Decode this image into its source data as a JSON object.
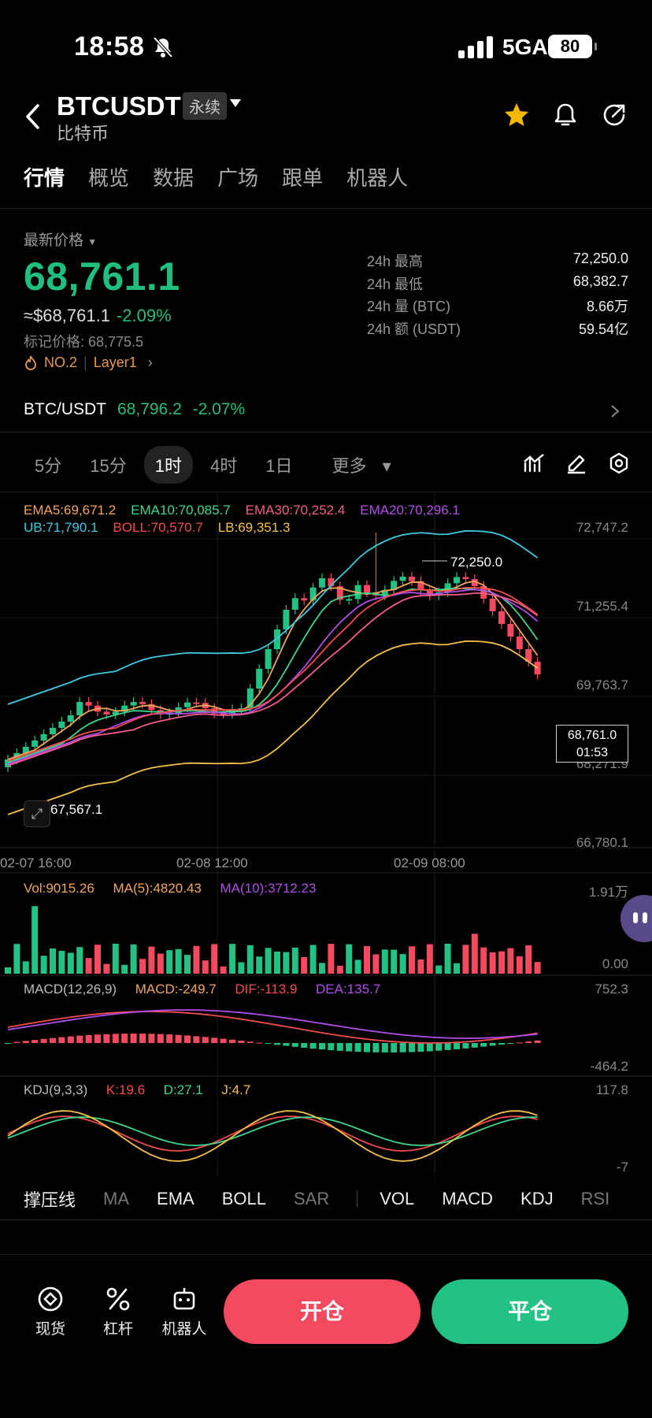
{
  "status_bar": {
    "time": "18:58",
    "network": "5GA",
    "battery": "80"
  },
  "header": {
    "symbol": "BTCUSDT",
    "contract_type": "永续",
    "name": "比特币"
  },
  "tabs": [
    "行情",
    "概览",
    "数据",
    "广场",
    "跟单",
    "机器人"
  ],
  "price": {
    "latest_label": "最新价格",
    "last": "68,761.1",
    "usd": "≈$68,761.1",
    "change": "-2.09%",
    "mark": "标记价格: 68,775.5",
    "rank": "NO.2",
    "category": "Layer1"
  },
  "stats": [
    {
      "label": "24h  最高",
      "value": "72,250.0"
    },
    {
      "label": "24h  最低",
      "value": "68,382.7"
    },
    {
      "label": "24h  量 (BTC)",
      "value": "8.66万"
    },
    {
      "label": "24h  额 (USDT)",
      "value": "59.54亿"
    }
  ],
  "spot_pair": {
    "label": "BTC/USDT",
    "price": "68,796.2",
    "change": "-2.07%"
  },
  "timeframes": [
    "5分",
    "15分",
    "1时",
    "4时",
    "1日",
    "更多"
  ],
  "active_timeframe": "1时",
  "legend": {
    "ema5": "EMA5:69,671.2",
    "ema10": "EMA10:70,085.7",
    "ema30": "EMA30:70,252.4",
    "ema20": "EMA20:70,296.1",
    "ub": "UB:71,790.1",
    "boll": "BOLL:70,570.7",
    "lb": "LB:69,351.3"
  },
  "price_axis": [
    "72,747.2",
    "71,255.4",
    "69,763.7",
    "68,271.9",
    "66,780.1"
  ],
  "time_axis": [
    "02-07 16:00",
    "02-08 12:00",
    "02-09 08:00"
  ],
  "annotations": {
    "high": "72,250.0",
    "low": "67,567.1",
    "current": "68,761.0",
    "countdown": "01:53"
  },
  "volume": {
    "vol": "Vol:9015.26",
    "ma5": "MA(5):4820.43",
    "ma10": "MA(10):3712.23",
    "max": "1.91万",
    "min": "0.00"
  },
  "macd": {
    "name": "MACD(12,26,9)",
    "macd": "MACD:-249.7",
    "dif": "DIF:-113.9",
    "dea": "DEA:135.7",
    "max": "752.3",
    "min": "-464.2"
  },
  "kdj": {
    "name": "KDJ(9,3,3)",
    "k": "K:19.6",
    "d": "D:27.1",
    "j": "J:4.7",
    "max": "117.8",
    "min": "-7"
  },
  "indicators": [
    "撑压线",
    "MA",
    "EMA",
    "BOLL",
    "SAR",
    "VOL",
    "MACD",
    "KDJ",
    "RSI"
  ],
  "bottom": {
    "spot": "现货",
    "leverage": "杠杆",
    "bot": "机器人",
    "open": "开仓",
    "close": "平仓"
  },
  "colors": {
    "up": "#22c284",
    "down": "#f4495e",
    "accent_star": "#f5b800"
  }
}
